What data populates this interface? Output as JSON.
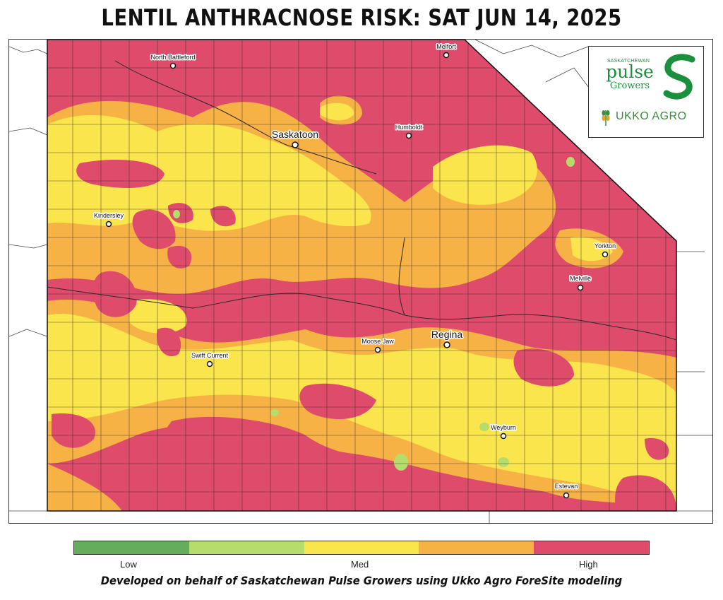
{
  "title": "LENTIL ANTHRACNOSE RISK: SAT JUN 14, 2025",
  "colors": {
    "high": "#de4b6b",
    "med_high": "#f7b246",
    "med": "#fbe54c",
    "low_med": "#b6dc6b",
    "low": "#63ad5c",
    "boundary": "#2a2a2a"
  },
  "cities": [
    {
      "name": "North Battleford",
      "size": "small"
    },
    {
      "name": "Melfort",
      "size": "small"
    },
    {
      "name": "Saskatoon",
      "size": "big"
    },
    {
      "name": "Humboldt",
      "size": "small"
    },
    {
      "name": "Kindersley",
      "size": "small"
    },
    {
      "name": "Yorkton",
      "size": "small"
    },
    {
      "name": "Melville",
      "size": "small"
    },
    {
      "name": "Regina",
      "size": "big"
    },
    {
      "name": "Moose Jaw",
      "size": "small"
    },
    {
      "name": "Swift Current",
      "size": "small"
    },
    {
      "name": "Weyburn",
      "size": "small"
    },
    {
      "name": "Estevan",
      "size": "small"
    }
  ],
  "logos": {
    "spg_top": "SASKATCHEWAN",
    "spg_pulse": "pulse",
    "spg_growers": "Growers",
    "ukko": "UKKO AGRO"
  },
  "legend": {
    "labels": {
      "low": "Low",
      "med": "Med",
      "high": "High"
    },
    "segments": [
      "#63ad5c",
      "#b6dc6b",
      "#fbe54c",
      "#f7b246",
      "#de4b6b"
    ]
  },
  "footer": "Developed on behalf of Saskatchewan Pulse Growers using Ukko Agro ForeSite modeling"
}
